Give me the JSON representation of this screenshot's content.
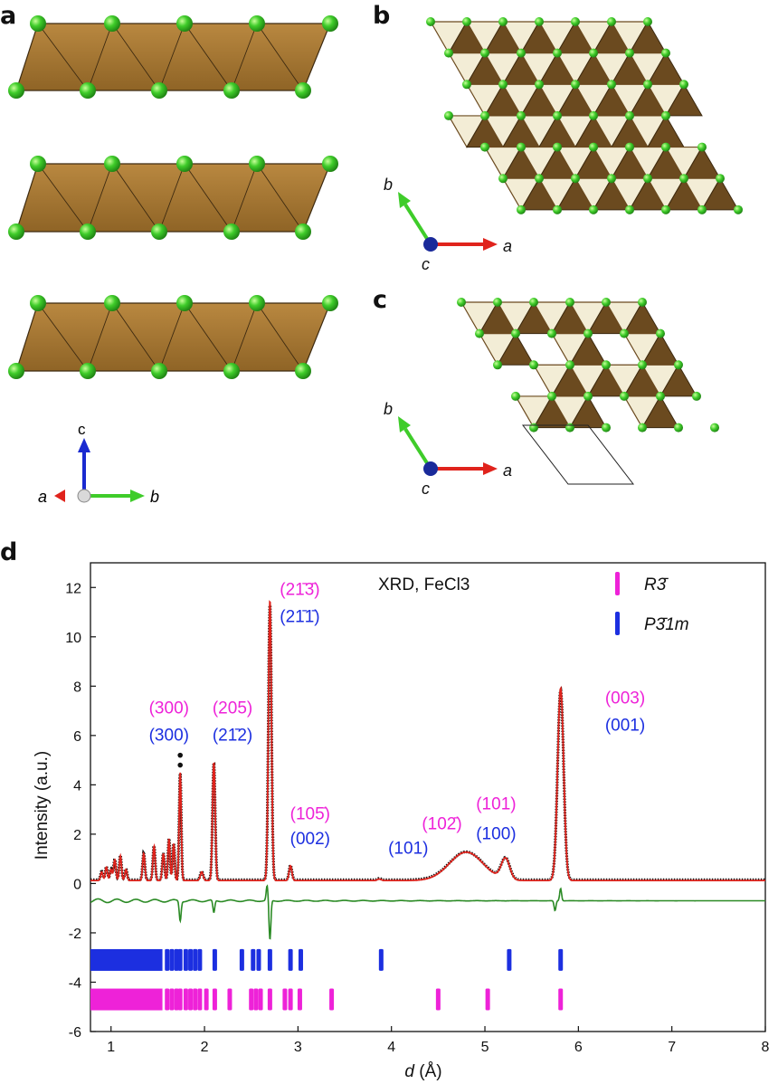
{
  "panel_labels": {
    "a": "a",
    "b": "b",
    "c": "c",
    "d": "d"
  },
  "axes_a": {
    "c": "c",
    "a": "a",
    "b": "b"
  },
  "axes_b": {
    "b": "b",
    "a": "a",
    "c": "c"
  },
  "axes_c": {
    "b": "b",
    "a": "a",
    "c": "c"
  },
  "colors": {
    "octahedron": "#a87a35",
    "octahedron_dark": "#6b4a1f",
    "chlorine": "#3fcc2a",
    "pale_triangle": "#f3edd6",
    "observed": "#111111",
    "calculated": "#e0231c",
    "difference": "#2a8a24",
    "phase_r3": "#ee22d8",
    "phase_p31m": "#1c2fe0",
    "axis_red": "#e0231c",
    "axis_green": "#3fcc2a",
    "axis_blue": "#1a2ad0"
  },
  "chart_data": {
    "type": "line",
    "title": "XRD, FeCl3",
    "xlabel": "d (Å)",
    "ylabel": "Intensity (a.u.)",
    "xlim": [
      0.78,
      8.0
    ],
    "ylim": [
      -6,
      13
    ],
    "xticks": [
      1,
      2,
      3,
      4,
      5,
      6,
      7,
      8
    ],
    "yticks": [
      -6,
      -4,
      -2,
      0,
      2,
      4,
      6,
      8,
      10,
      12
    ],
    "grid": false,
    "legend_position": "top-right",
    "legend": [
      {
        "label": "R3̄",
        "color": "#ee22d8"
      },
      {
        "label": "P3̄1m",
        "color": "#1c2fe0"
      }
    ],
    "peaks": [
      {
        "d": 0.9,
        "h": 0.35,
        "w": 0.012
      },
      {
        "d": 0.95,
        "h": 0.55,
        "w": 0.012
      },
      {
        "d": 1.0,
        "h": 0.45,
        "w": 0.012
      },
      {
        "d": 1.04,
        "h": 0.85,
        "w": 0.012
      },
      {
        "d": 1.1,
        "h": 1.0,
        "w": 0.012
      },
      {
        "d": 1.16,
        "h": 0.45,
        "w": 0.012
      },
      {
        "d": 1.35,
        "h": 1.1,
        "w": 0.012
      },
      {
        "d": 1.46,
        "h": 1.4,
        "w": 0.012
      },
      {
        "d": 1.56,
        "h": 1.1,
        "w": 0.012
      },
      {
        "d": 1.62,
        "h": 1.7,
        "w": 0.011
      },
      {
        "d": 1.67,
        "h": 1.5,
        "w": 0.011
      },
      {
        "d": 1.74,
        "h": 4.4,
        "w": 0.011
      },
      {
        "d": 1.97,
        "h": 0.35,
        "w": 0.015
      },
      {
        "d": 2.1,
        "h": 4.8,
        "w": 0.014
      },
      {
        "d": 2.7,
        "h": 11.4,
        "w": 0.016
      },
      {
        "d": 2.92,
        "h": 0.6,
        "w": 0.015
      },
      {
        "d": 3.87,
        "h": 0.06,
        "w": 0.02
      },
      {
        "d": 4.8,
        "h": 1.15,
        "w": 0.18
      },
      {
        "d": 5.22,
        "h": 0.85,
        "w": 0.045
      },
      {
        "d": 5.81,
        "h": 7.8,
        "w": 0.032
      }
    ],
    "baseline": 0.12,
    "difference_offset": -0.7,
    "difference_spikes": [
      {
        "d": 1.74,
        "amp": -0.8
      },
      {
        "d": 2.1,
        "amp": -0.5
      },
      {
        "d": 2.7,
        "amp": -1.6
      },
      {
        "d": 2.67,
        "amp": 0.6
      },
      {
        "d": 5.81,
        "amp": 0.5
      },
      {
        "d": 5.75,
        "amp": -0.4
      }
    ],
    "outlier_points": [
      {
        "d": 1.74,
        "y": 5.2
      },
      {
        "d": 1.74,
        "y": 4.8
      }
    ],
    "tick_marks_p31m": {
      "y": -3.1,
      "d": [
        2.11,
        2.4,
        2.52,
        2.58,
        2.7,
        2.92,
        3.03,
        3.89,
        5.26,
        5.81
      ]
    },
    "tick_marks_r3": {
      "y": -4.7,
      "d": [
        2.02,
        2.11,
        2.27,
        2.5,
        2.55,
        2.6,
        2.7,
        2.86,
        2.92,
        3.02,
        3.36,
        4.5,
        5.03,
        5.81
      ]
    },
    "peak_labels": [
      {
        "pink": "(300)",
        "blue": "(300)",
        "d": 1.62,
        "y_pink": 6.9,
        "y_blue": 5.8
      },
      {
        "pink": "(205)",
        "blue": "(21̄2)",
        "d": 2.3,
        "y_pink": 6.9,
        "y_blue": 5.8
      },
      {
        "pink": "(21̄3̄)",
        "blue": "(21̄1̄)",
        "d": 3.02,
        "y_pink": 11.7,
        "y_blue": 10.6
      },
      {
        "pink": "(105̄)",
        "blue": "(002)",
        "d": 3.13,
        "y_pink": 2.6,
        "y_blue": 1.6
      },
      {
        "pink": "",
        "blue": "(101)",
        "d": 4.18,
        "y_pink": null,
        "y_blue": 1.2
      },
      {
        "pink": "(102̄)",
        "blue": "",
        "d": 4.54,
        "y_pink": 2.2,
        "y_blue": null
      },
      {
        "pink": "(101)",
        "blue": "(100)",
        "d": 5.12,
        "y_pink": 3.0,
        "y_blue": 1.8
      },
      {
        "pink": "(003)",
        "blue": "(001)",
        "d": 6.5,
        "y_pink": 7.3,
        "y_blue": 6.2
      }
    ]
  }
}
